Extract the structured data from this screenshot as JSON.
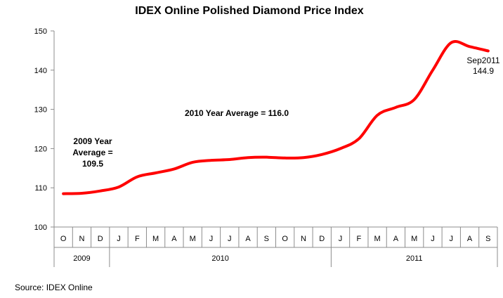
{
  "chart_data": {
    "type": "line",
    "title": "IDEX Online Polished Diamond Price Index",
    "xlabel": "",
    "ylabel": "",
    "ylim": [
      100,
      150
    ],
    "yticks": [
      100,
      110,
      120,
      130,
      140,
      150
    ],
    "grid": false,
    "legend": "none",
    "categories": [
      "O",
      "N",
      "D",
      "J",
      "F",
      "M",
      "A",
      "M",
      "J",
      "J",
      "A",
      "S",
      "O",
      "N",
      "D",
      "J",
      "F",
      "M",
      "A",
      "M",
      "J",
      "J",
      "A",
      "S"
    ],
    "years": [
      {
        "label": "2009",
        "start": 0,
        "end": 2
      },
      {
        "label": "2010",
        "start": 3,
        "end": 14
      },
      {
        "label": "2011",
        "start": 15,
        "end": 23
      }
    ],
    "series": [
      {
        "color": "#ff0000",
        "values": [
          108.5,
          108.6,
          109.2,
          110.2,
          112.8,
          113.8,
          114.8,
          116.5,
          117.0,
          117.2,
          117.7,
          117.8,
          117.6,
          117.7,
          118.5,
          120.0,
          122.5,
          128.5,
          130.5,
          132.5,
          140.0,
          147.0,
          146.0,
          144.9
        ]
      }
    ],
    "annotations": {
      "year2009_lines": [
        "2009 Year",
        "Average =",
        "109.5"
      ],
      "year2010": "2010 Year Average = 116.0",
      "last_point_lines": [
        "Sep2011",
        "144.9"
      ]
    },
    "source": "Source:  IDEX Online"
  }
}
